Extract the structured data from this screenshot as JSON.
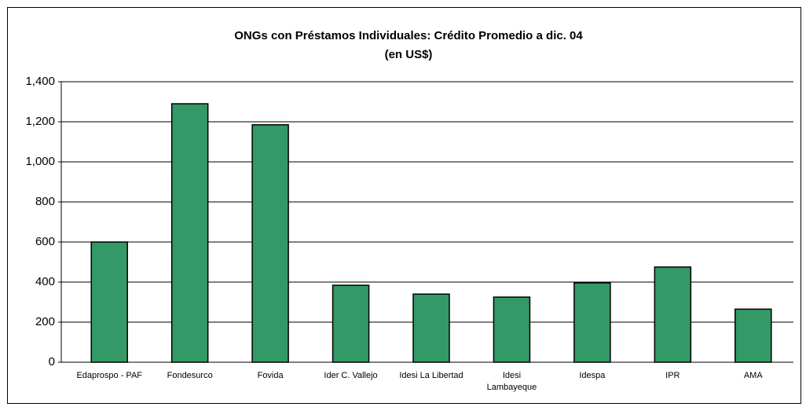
{
  "chart_data": {
    "type": "bar",
    "title": "ONGs con Préstamos Individuales: Crédito Promedio a  dic. 04",
    "subtitle": "(en US$)",
    "categories": [
      "Edaprospo - PAF",
      "Fondesurco",
      "Fovida",
      "Ider C. Vallejo",
      "Idesi La Libertad",
      "Idesi Lambayeque",
      "Idespa",
      "IPR",
      "AMA"
    ],
    "values": [
      600,
      1290,
      1185,
      384,
      340,
      325,
      396,
      475,
      265
    ],
    "color": "#339966",
    "ylim": [
      0,
      1400
    ],
    "yticks": [
      0,
      200,
      400,
      600,
      800,
      {
        "value": 1000,
        "label": "1,000"
      },
      {
        "value": 1200,
        "label": "1,200"
      },
      {
        "value": 1400,
        "label": "1,400"
      }
    ],
    "grid": true
  }
}
